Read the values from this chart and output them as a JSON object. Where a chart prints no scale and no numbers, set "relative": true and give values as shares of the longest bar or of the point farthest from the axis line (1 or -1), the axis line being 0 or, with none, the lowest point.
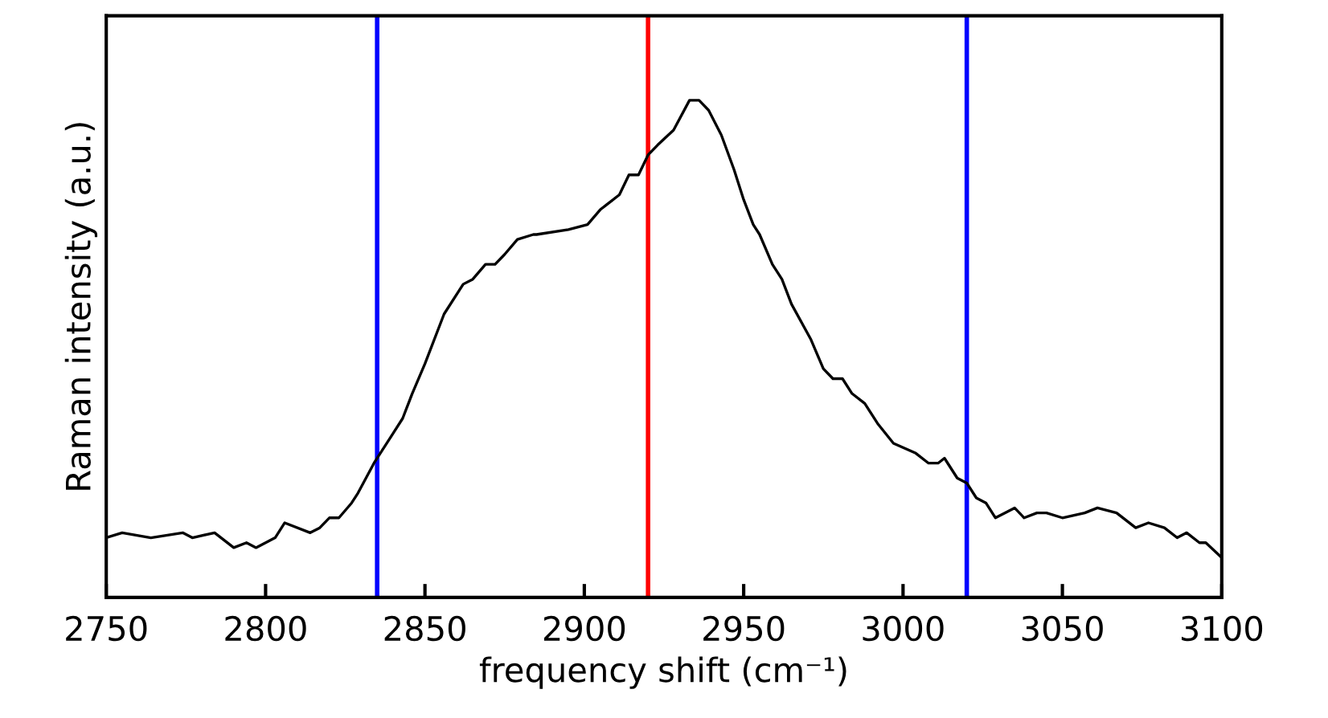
{
  "chart_data": {
    "type": "line",
    "relative": true,
    "xlabel": "frequency shift (cm⁻¹)",
    "ylabel": "Raman intensity (a.u.)",
    "xlim": [
      2750,
      3100
    ],
    "xticks": [
      2750,
      2800,
      2850,
      2900,
      2950,
      3000,
      3050,
      3100
    ],
    "grid": false,
    "legend": false,
    "marker": "none",
    "line_style": "solid",
    "series": [
      {
        "color": "#000000",
        "x": [
          2750,
          2755,
          2764,
          2774,
          2777,
          2784,
          2790,
          2794,
          2797,
          2803,
          2806,
          2814,
          2817,
          2820,
          2823,
          2827,
          2829,
          2834,
          2840,
          2843,
          2846,
          2850,
          2856,
          2862,
          2865,
          2869,
          2872,
          2875,
          2879,
          2884,
          2885,
          2895,
          2901,
          2905,
          2907,
          2911,
          2914,
          2917,
          2920,
          2923,
          2928,
          2933,
          2936,
          2939,
          2943,
          2947,
          2950,
          2953,
          2955,
          2959,
          2962,
          2965,
          2971,
          2975,
          2978,
          2981,
          2984,
          2988,
          2992,
          2997,
          3004,
          3008,
          3011,
          3013,
          3017,
          3020,
          3023,
          3026,
          3029,
          3035,
          3038,
          3042,
          3045,
          3050,
          3057,
          3061,
          3067,
          3073,
          3077,
          3082,
          3086,
          3089,
          3093,
          3095,
          3100
        ],
        "values": [
          0.12,
          0.13,
          0.12,
          0.13,
          0.12,
          0.13,
          0.1,
          0.11,
          0.1,
          0.12,
          0.15,
          0.13,
          0.14,
          0.16,
          0.16,
          0.19,
          0.21,
          0.27,
          0.33,
          0.36,
          0.41,
          0.47,
          0.57,
          0.63,
          0.64,
          0.67,
          0.67,
          0.69,
          0.72,
          0.73,
          0.73,
          0.74,
          0.75,
          0.78,
          0.79,
          0.81,
          0.85,
          0.85,
          0.89,
          0.91,
          0.94,
          1.0,
          1.0,
          0.98,
          0.93,
          0.86,
          0.8,
          0.75,
          0.73,
          0.67,
          0.64,
          0.59,
          0.52,
          0.46,
          0.44,
          0.44,
          0.41,
          0.39,
          0.35,
          0.31,
          0.29,
          0.27,
          0.27,
          0.28,
          0.24,
          0.23,
          0.2,
          0.19,
          0.16,
          0.18,
          0.16,
          0.17,
          0.17,
          0.16,
          0.17,
          0.18,
          0.17,
          0.14,
          0.15,
          0.14,
          0.12,
          0.13,
          0.11,
          0.11,
          0.08
        ]
      }
    ],
    "ref_lines": [
      {
        "axis": "x",
        "value": 2835,
        "color": "#0000ff"
      },
      {
        "axis": "x",
        "value": 2920,
        "color": "#ff0000"
      },
      {
        "axis": "x",
        "value": 3020,
        "color": "#0000ff"
      }
    ]
  }
}
